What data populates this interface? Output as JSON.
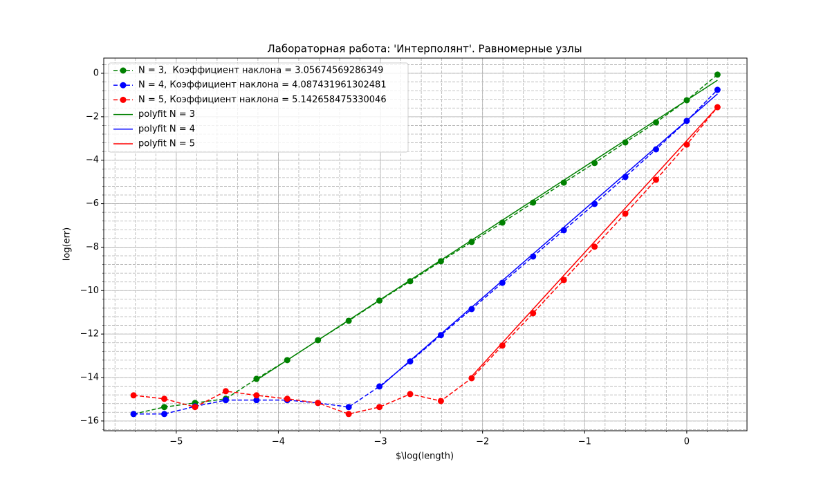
{
  "chart_data": {
    "type": "line",
    "title": "Лабораторная работа: 'Интерполянт'. Равномерные узлы",
    "x_label": "$\\log(length)",
    "y_label": "log(err)",
    "xlim": [
      -5.71,
      0.59
    ],
    "ylim": [
      -16.45,
      0.7
    ],
    "xticks": [
      {
        "value": -5,
        "label": "−5"
      },
      {
        "value": -4,
        "label": "−4"
      },
      {
        "value": -3,
        "label": "−3"
      },
      {
        "value": -2,
        "label": "−2"
      },
      {
        "value": -1,
        "label": "−1"
      },
      0
    ],
    "yticks": [
      {
        "value": -16,
        "label": "−16"
      },
      {
        "value": -14,
        "label": "−14"
      },
      {
        "value": -12,
        "label": "−12"
      },
      {
        "value": -10,
        "label": "−10"
      },
      {
        "value": -8,
        "label": "−8"
      },
      {
        "value": -6,
        "label": "−6"
      },
      {
        "value": -4,
        "label": "−4"
      },
      {
        "value": -2,
        "label": "−2"
      },
      0
    ],
    "grid": true,
    "minor_grid": true,
    "xminor": 0.2,
    "yminor": 0.4,
    "legend": "upper left",
    "series": [
      {
        "name": "N = 3,  Коэффициент наклона = 3.05674569286349",
        "color": "green",
        "style": "dashed",
        "marker": true,
        "x": [
          -5.418,
          -5.117,
          -4.816,
          -4.515,
          -4.214,
          -3.913,
          -3.612,
          -3.311,
          -3.01,
          -2.709,
          -2.408,
          -2.107,
          -1.806,
          -1.505,
          -1.204,
          -0.903,
          -0.602,
          -0.301,
          0,
          0.301
        ],
        "values": [
          -15.68,
          -15.36,
          -15.17,
          -14.98,
          -14.06,
          -13.2,
          -12.28,
          -11.39,
          -10.46,
          -9.57,
          -8.65,
          -7.76,
          -6.87,
          -5.95,
          -5.03,
          -4.13,
          -3.18,
          -2.26,
          -1.24,
          -0.06
        ]
      },
      {
        "name": "N = 4, Коэффициент наклона = 4.087431961302481",
        "color": "blue",
        "style": "dashed",
        "marker": true,
        "x": [
          -5.418,
          -5.117,
          -4.816,
          -4.515,
          -4.214,
          -3.913,
          -3.612,
          -3.311,
          -3.01,
          -2.709,
          -2.408,
          -2.107,
          -1.806,
          -1.505,
          -1.204,
          -0.903,
          -0.602,
          -0.301,
          0,
          0.301
        ],
        "values": [
          -15.68,
          -15.68,
          -15.33,
          -15.04,
          -15.04,
          -15.04,
          -15.17,
          -15.36,
          -14.41,
          -13.26,
          -12.05,
          -10.85,
          -9.64,
          -8.43,
          -7.22,
          -6.01,
          -4.77,
          -3.5,
          -2.19,
          -0.76
        ]
      },
      {
        "name": "N = 5, Коэффициент наклона = 5.142658475330046",
        "color": "red",
        "style": "dashed",
        "marker": true,
        "x": [
          -5.418,
          -5.117,
          -4.816,
          -4.515,
          -4.214,
          -3.913,
          -3.612,
          -3.311,
          -3.01,
          -2.709,
          -2.408,
          -2.107,
          -1.806,
          -1.505,
          -1.204,
          -0.903,
          -0.602,
          -0.301,
          0,
          0.301
        ],
        "values": [
          -14.82,
          -14.98,
          -15.36,
          -14.63,
          -14.82,
          -14.98,
          -15.17,
          -15.68,
          -15.36,
          -14.76,
          -15.08,
          -14.03,
          -12.53,
          -11.04,
          -9.51,
          -7.98,
          -6.46,
          -4.9,
          -3.28,
          -1.56
        ]
      },
      {
        "name": "polyfit N = 3",
        "color": "green",
        "style": "solid",
        "marker": false,
        "x": [
          -4.214,
          0.301
        ],
        "values": [
          -14.12,
          -0.32
        ]
      },
      {
        "name": "polyfit N = 4",
        "color": "blue",
        "style": "solid",
        "marker": false,
        "x": [
          -3.01,
          0.301
        ],
        "values": [
          -14.45,
          -0.95
        ]
      },
      {
        "name": "polyfit N = 5",
        "color": "red",
        "style": "solid",
        "marker": false,
        "x": [
          -2.107,
          0.301
        ],
        "values": [
          -13.95,
          -1.55
        ]
      }
    ]
  }
}
